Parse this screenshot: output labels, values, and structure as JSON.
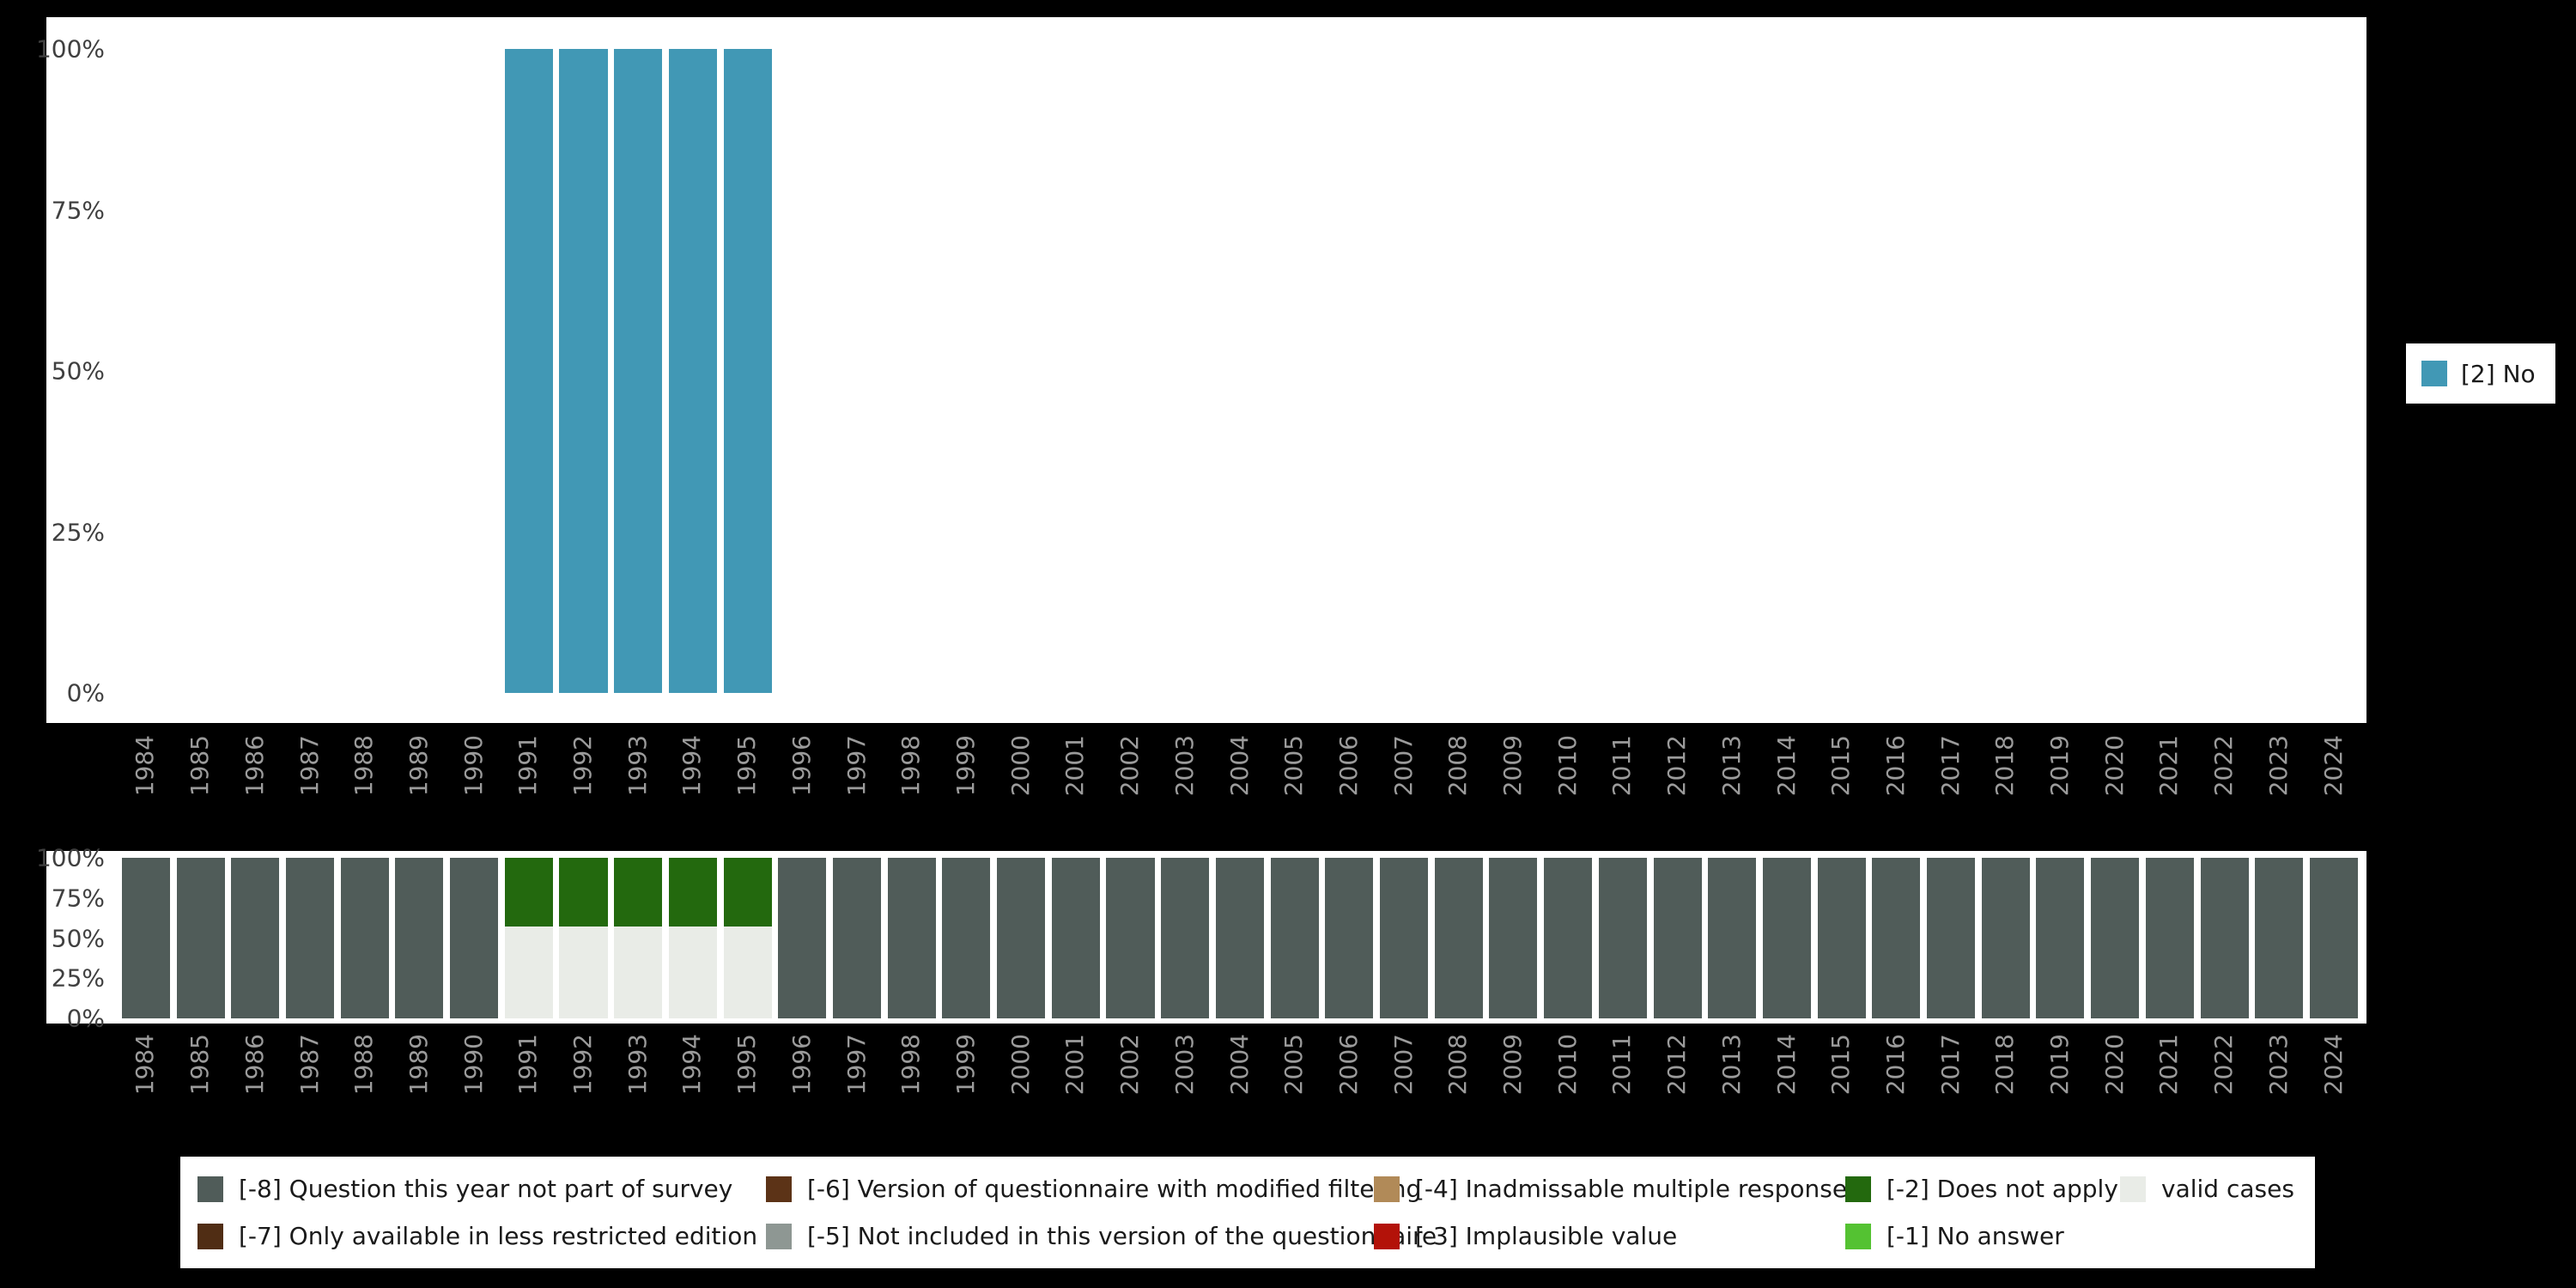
{
  "colors": {
    "page_background": "#000000",
    "panel_background": "#ffffff",
    "y_axis_text": "#404040",
    "x_axis_text": "#9b9b9b",
    "bar_no": "#4198b5",
    "missing_not_part_of_survey": "#505c59",
    "missing_less_restricted": "#502d14",
    "missing_modified_filtering": "#5c3317",
    "missing_not_in_version": "#8e9793",
    "missing_inadmissable_multiple": "#b18a58",
    "missing_implausible": "#b31209",
    "missing_does_not_apply": "#23690e",
    "missing_no_answer": "#54c232",
    "valid_cases": "#e9ece7"
  },
  "top_legend": {
    "label": "[2] No"
  },
  "chart_data": [
    {
      "type": "bar",
      "stacked": true,
      "title": "",
      "xlabel": "",
      "ylabel": "",
      "ylim": [
        0,
        100
      ],
      "grid": false,
      "legend_position": "right",
      "y_tick_labels": [
        "100%",
        "75%",
        "50%",
        "25%",
        "0%"
      ],
      "categories": [
        "1984",
        "1985",
        "1986",
        "1987",
        "1988",
        "1989",
        "1990",
        "1991",
        "1992",
        "1993",
        "1994",
        "1995",
        "1996",
        "1997",
        "1998",
        "1999",
        "2000",
        "2001",
        "2002",
        "2003",
        "2004",
        "2005",
        "2006",
        "2007",
        "2008",
        "2009",
        "2010",
        "2011",
        "2012",
        "2013",
        "2014",
        "2015",
        "2016",
        "2017",
        "2018",
        "2019",
        "2020",
        "2021",
        "2022",
        "2023",
        "2024"
      ],
      "series": [
        {
          "name": "[2] No",
          "color": "#4198b5",
          "values": [
            0,
            0,
            0,
            0,
            0,
            0,
            0,
            100,
            100,
            100,
            100,
            100,
            0,
            0,
            0,
            0,
            0,
            0,
            0,
            0,
            0,
            0,
            0,
            0,
            0,
            0,
            0,
            0,
            0,
            0,
            0,
            0,
            0,
            0,
            0,
            0,
            0,
            0,
            0,
            0,
            0
          ]
        }
      ]
    },
    {
      "type": "bar",
      "stacked": true,
      "title": "",
      "xlabel": "",
      "ylabel": "",
      "ylim": [
        0,
        100
      ],
      "grid": false,
      "legend_position": "bottom",
      "y_tick_labels": [
        "100%",
        "75%",
        "50%",
        "25%",
        "0%"
      ],
      "categories": [
        "1984",
        "1985",
        "1986",
        "1987",
        "1988",
        "1989",
        "1990",
        "1991",
        "1992",
        "1993",
        "1994",
        "1995",
        "1996",
        "1997",
        "1998",
        "1999",
        "2000",
        "2001",
        "2002",
        "2003",
        "2004",
        "2005",
        "2006",
        "2007",
        "2008",
        "2009",
        "2010",
        "2011",
        "2012",
        "2013",
        "2014",
        "2015",
        "2016",
        "2017",
        "2018",
        "2019",
        "2020",
        "2021",
        "2022",
        "2023",
        "2024"
      ],
      "series": [
        {
          "name": "valid cases",
          "color": "#e9ece7",
          "values": [
            0,
            0,
            0,
            0,
            0,
            0,
            0,
            57,
            57,
            57,
            57,
            57,
            0,
            0,
            0,
            0,
            0,
            0,
            0,
            0,
            0,
            0,
            0,
            0,
            0,
            0,
            0,
            0,
            0,
            0,
            0,
            0,
            0,
            0,
            0,
            0,
            0,
            0,
            0,
            0,
            0
          ]
        },
        {
          "name": "[-2] Does not apply",
          "color": "#23690e",
          "values": [
            0,
            0,
            0,
            0,
            0,
            0,
            0,
            43,
            43,
            43,
            43,
            43,
            0,
            0,
            0,
            0,
            0,
            0,
            0,
            0,
            0,
            0,
            0,
            0,
            0,
            0,
            0,
            0,
            0,
            0,
            0,
            0,
            0,
            0,
            0,
            0,
            0,
            0,
            0,
            0,
            0
          ]
        },
        {
          "name": "[-8] Question this year not part of survey",
          "color": "#505c59",
          "values": [
            100,
            100,
            100,
            100,
            100,
            100,
            100,
            0,
            0,
            0,
            0,
            0,
            100,
            100,
            100,
            100,
            100,
            100,
            100,
            100,
            100,
            100,
            100,
            100,
            100,
            100,
            100,
            100,
            100,
            100,
            100,
            100,
            100,
            100,
            100,
            100,
            100,
            100,
            100,
            100,
            100
          ]
        }
      ]
    }
  ],
  "missing_legend": {
    "rows": [
      [
        {
          "label": "[-8] Question this year not part of survey",
          "color": "#505c59"
        },
        {
          "label": "[-6] Version of questionnaire with modified filtering",
          "color": "#5c3317"
        },
        {
          "label": "[-4] Inadmissable multiple response",
          "color": "#b18a58"
        },
        {
          "label": "[-2] Does not apply",
          "color": "#23690e"
        },
        {
          "label": "valid cases",
          "color": "#e9ece7"
        }
      ],
      [
        {
          "label": "[-7] Only available in less restricted edition",
          "color": "#502d14"
        },
        {
          "label": "[-5] Not included in this version of the questionnaire",
          "color": "#8e9793"
        },
        {
          "label": "[-3] Implausible value",
          "color": "#b31209"
        },
        {
          "label": "[-1] No answer",
          "color": "#54c232"
        }
      ]
    ]
  }
}
